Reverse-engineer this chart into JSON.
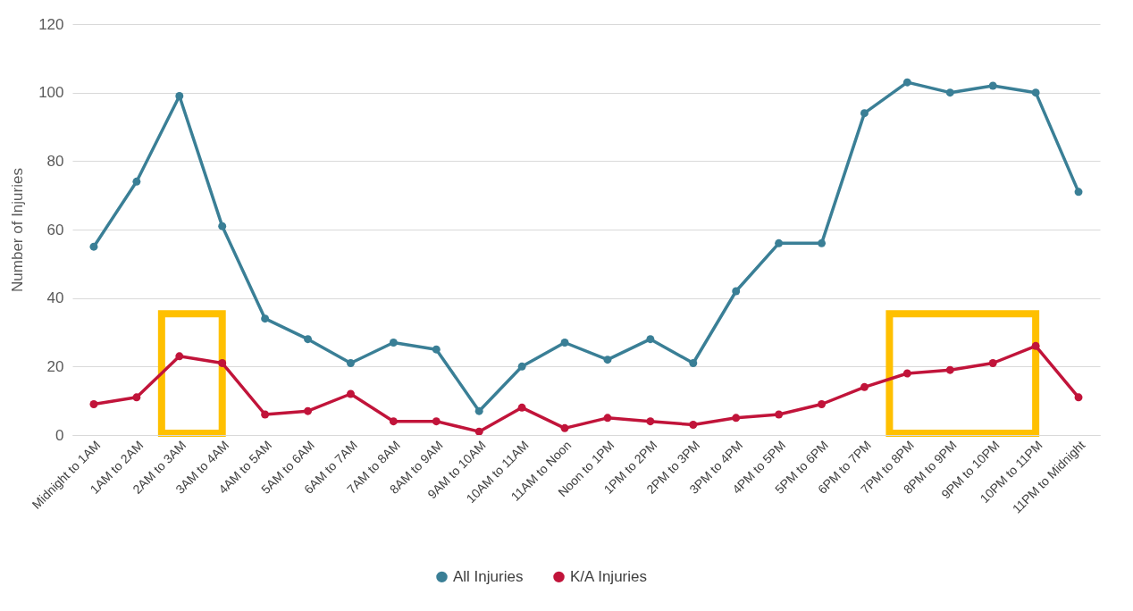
{
  "chart_data": {
    "type": "line",
    "ylabel": "Number of Injuries",
    "categories": [
      "Midnight to 1AM",
      "1AM to 2AM",
      "2AM to 3AM",
      "3AM to 4AM",
      "4AM to 5AM",
      "5AM to 6AM",
      "6AM to 7AM",
      "7AM to 8AM",
      "8AM to 9AM",
      "9AM to 10AM",
      "10AM to 11AM",
      "11AM to Noon",
      "Noon to 1PM",
      "1PM to 2PM",
      "2PM to 3PM",
      "3PM to 4PM",
      "4PM to 5PM",
      "5PM to 6PM",
      "6PM to 7PM",
      "7PM to 8PM",
      "8PM to 9PM",
      "9PM to 10PM",
      "10PM to 11PM",
      "11PM to Midnight"
    ],
    "series": [
      {
        "name": "All Injuries",
        "color": "#3a7f96",
        "values": [
          55,
          74,
          99,
          61,
          34,
          28,
          21,
          27,
          25,
          7,
          20,
          27,
          22,
          28,
          21,
          42,
          56,
          56,
          94,
          103,
          100,
          102,
          100,
          71
        ]
      },
      {
        "name": "K/A Injuries",
        "color": "#c1143a",
        "values": [
          9,
          11,
          23,
          21,
          6,
          7,
          12,
          4,
          4,
          1,
          8,
          2,
          5,
          4,
          3,
          5,
          6,
          9,
          14,
          18,
          19,
          21,
          26,
          11
        ]
      }
    ],
    "ylim": [
      0,
      120
    ],
    "yticks": [
      0,
      20,
      40,
      60,
      80,
      100,
      120
    ],
    "grid": "y",
    "legend": "bottom",
    "marker": "circle",
    "line_style": "solid"
  }
}
